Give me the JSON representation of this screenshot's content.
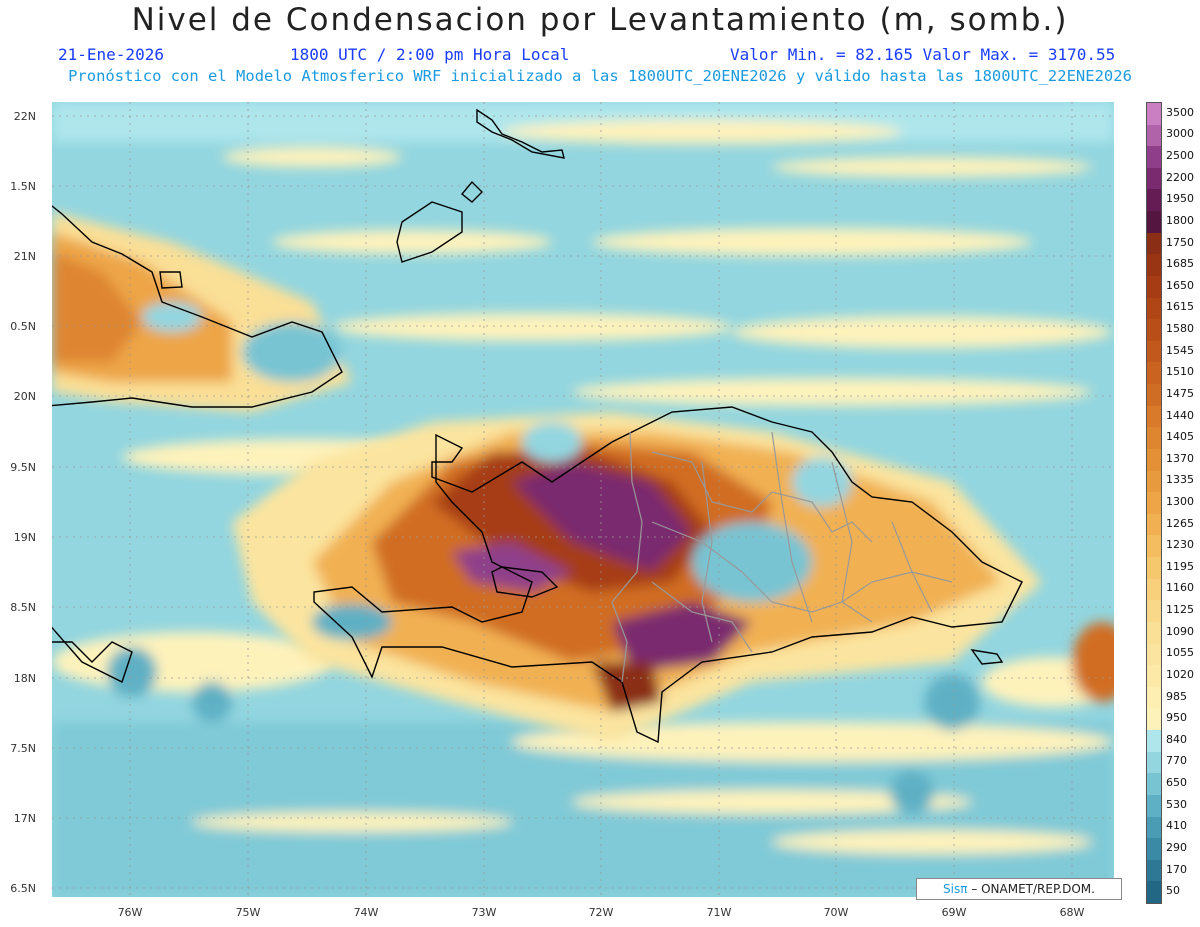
{
  "header": {
    "title": "Nivel de Condensacion por Levantamiento (m, somb.)",
    "date": "21-Ene-2026",
    "time": "1800 UTC / 2:00 pm Hora Local",
    "min_max": "Valor Min. = 82.165  Valor Max. = 3170.55",
    "model_info": "Pronóstico con el Modelo Atmosferico WRF inicializado a las 1800UTC_20ENE2026 y válido hasta las  1800UTC_22ENE2026"
  },
  "axes": {
    "lat_labels": [
      "22N",
      "1.5N",
      "21N",
      "0.5N",
      "20N",
      "9.5N",
      "19N",
      "8.5N",
      "18N",
      "7.5N",
      "17N",
      "6.5N"
    ],
    "lon_labels": [
      "76W",
      "75W",
      "74W",
      "73W",
      "72W",
      "71W",
      "70W",
      "69W",
      "68W"
    ]
  },
  "colorbar": {
    "labels": [
      "3500",
      "3000",
      "2500",
      "2200",
      "1950",
      "1800",
      "1750",
      "1685",
      "1650",
      "1615",
      "1580",
      "1545",
      "1510",
      "1475",
      "1440",
      "1405",
      "1370",
      "1335",
      "1300",
      "1265",
      "1230",
      "1195",
      "1160",
      "1125",
      "1090",
      "1055",
      "1020",
      "985",
      "950",
      "840",
      "770",
      "650",
      "530",
      "410",
      "290",
      "170",
      "50"
    ],
    "colors": [
      "#c97fc2",
      "#b063a8",
      "#8f3f8a",
      "#7a2a6e",
      "#651c55",
      "#541540",
      "#8a2e16",
      "#9a3514",
      "#a63c14",
      "#b04516",
      "#b94e19",
      "#c2581c",
      "#ca6320",
      "#d06d24",
      "#d87a2a",
      "#de8530",
      "#e39036",
      "#e89b3e",
      "#eda547",
      "#f1b152",
      "#f4bd60",
      "#f6c86e",
      "#f8d07c",
      "#f9d88a",
      "#fadf96",
      "#fbe49f",
      "#fce9a8",
      "#fdeeb2",
      "#fef2bb",
      "#aee6ec",
      "#93d6e0",
      "#78c4d3",
      "#5eb0c4",
      "#4a9cb5",
      "#3a8aa6",
      "#2e7896",
      "#226783"
    ]
  },
  "credit": {
    "sis": "Sisπ",
    "org": " – ONAMET/REP.DOM."
  }
}
